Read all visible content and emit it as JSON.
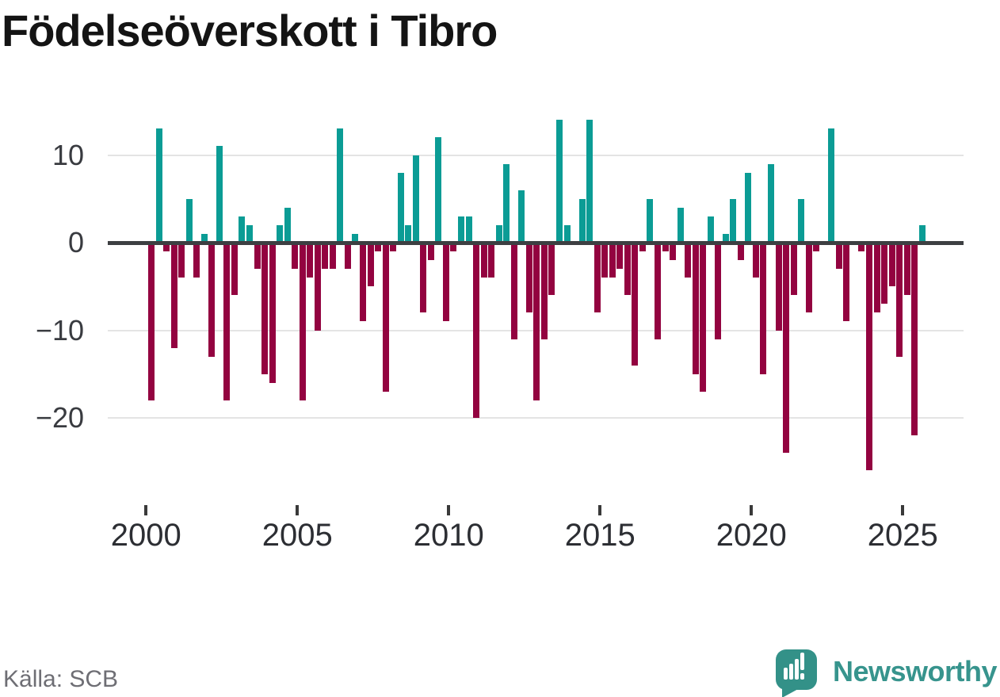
{
  "title": "Födelseöverskott i Tibro",
  "source": "Källa: SCB",
  "brand": {
    "name": "Newsworthy",
    "icon": "bar-chart-speech-bubble-icon"
  },
  "colors": {
    "positive_bar": "#0b9c95",
    "negative_bar": "#930340",
    "zero_line": "#3d3f42",
    "gridline": "#e4e4e4",
    "brand_teal": "#37948d"
  },
  "y_axis": {
    "labels": [
      {
        "text": "10",
        "value": 10
      },
      {
        "text": "0",
        "value": 0
      },
      {
        "text": "−10",
        "value": -10
      },
      {
        "text": "−20",
        "value": -20
      }
    ]
  },
  "x_axis": {
    "tick_years": [
      2000,
      2005,
      2010,
      2015,
      2020,
      2025
    ]
  },
  "chart_data": {
    "type": "bar",
    "title": "Födelseöverskott i Tibro",
    "period": "quarterly",
    "start": "2000 Q1",
    "end": "2025 Q3",
    "ylim": [
      -27,
      15
    ],
    "grid": true,
    "quarters": [
      "2000Q1",
      "2000Q2",
      "2000Q3",
      "2000Q4",
      "2001Q1",
      "2001Q2",
      "2001Q3",
      "2001Q4",
      "2002Q1",
      "2002Q2",
      "2002Q3",
      "2002Q4",
      "2003Q1",
      "2003Q2",
      "2003Q3",
      "2003Q4",
      "2004Q1",
      "2004Q2",
      "2004Q3",
      "2004Q4",
      "2005Q1",
      "2005Q2",
      "2005Q3",
      "2005Q4",
      "2006Q1",
      "2006Q2",
      "2006Q3",
      "2006Q4",
      "2007Q1",
      "2007Q2",
      "2007Q3",
      "2007Q4",
      "2008Q1",
      "2008Q2",
      "2008Q3",
      "2008Q4",
      "2009Q1",
      "2009Q2",
      "2009Q3",
      "2009Q4",
      "2010Q1",
      "2010Q2",
      "2010Q3",
      "2010Q4",
      "2011Q1",
      "2011Q2",
      "2011Q3",
      "2011Q4",
      "2012Q1",
      "2012Q2",
      "2012Q3",
      "2012Q4",
      "2013Q1",
      "2013Q2",
      "2013Q3",
      "2013Q4",
      "2014Q1",
      "2014Q2",
      "2014Q3",
      "2014Q4",
      "2015Q1",
      "2015Q2",
      "2015Q3",
      "2015Q4",
      "2016Q1",
      "2016Q2",
      "2016Q3",
      "2016Q4",
      "2017Q1",
      "2017Q2",
      "2017Q3",
      "2017Q4",
      "2018Q1",
      "2018Q2",
      "2018Q3",
      "2018Q4",
      "2019Q1",
      "2019Q2",
      "2019Q3",
      "2019Q4",
      "2020Q1",
      "2020Q2",
      "2020Q3",
      "2020Q4",
      "2021Q1",
      "2021Q2",
      "2021Q3",
      "2021Q4",
      "2022Q1",
      "2022Q2",
      "2022Q3",
      "2022Q4",
      "2023Q1",
      "2023Q2",
      "2023Q3",
      "2023Q4",
      "2024Q1",
      "2024Q2",
      "2024Q3",
      "2024Q4",
      "2025Q1",
      "2025Q2",
      "2025Q3"
    ],
    "values": [
      -18,
      13,
      -1,
      -12,
      -4,
      5,
      -4,
      1,
      -13,
      11,
      -18,
      -6,
      3,
      2,
      -3,
      -15,
      -16,
      2,
      4,
      -3,
      -18,
      -4,
      -10,
      -3,
      -3,
      13,
      -3,
      1,
      -9,
      -5,
      -1,
      -17,
      -1,
      8,
      2,
      10,
      -8,
      -2,
      12,
      -9,
      -1,
      3,
      3,
      -20,
      -4,
      -4,
      2,
      9,
      -11,
      6,
      -8,
      -18,
      -11,
      -6,
      14,
      2,
      0,
      5,
      14,
      -8,
      -4,
      -4,
      -3,
      -6,
      -14,
      -1,
      5,
      -11,
      -1,
      -2,
      4,
      -4,
      -15,
      -17,
      3,
      -11,
      1,
      5,
      -2,
      8,
      -4,
      -15,
      9,
      -10,
      -24,
      -6,
      5,
      -8,
      -1,
      0,
      13,
      -3,
      -9,
      0,
      -1,
      -26,
      -8,
      -7,
      -5,
      -13,
      -6,
      -22,
      2
    ]
  }
}
